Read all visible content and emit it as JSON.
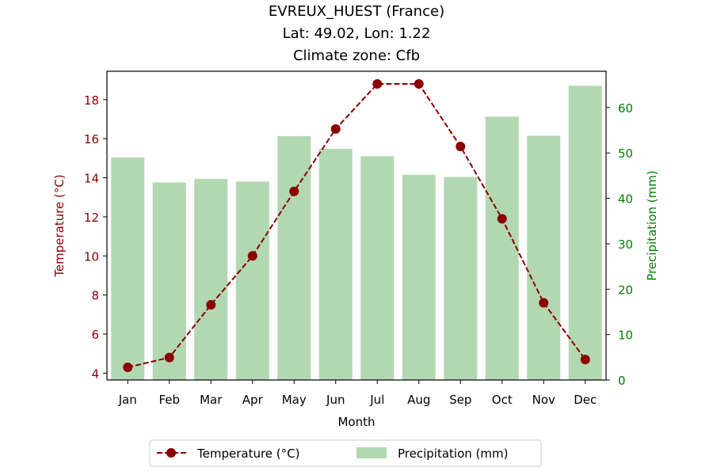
{
  "chart_data": {
    "type": "bar+line",
    "title_lines": [
      "EVREUX_HUEST (France)",
      "Lat: 49.02, Lon: 1.22",
      "Climate zone: Cfb"
    ],
    "xlabel": "Month",
    "ylabel_left": "Temperature (°C)",
    "ylabel_right": "Precipitation (mm)",
    "categories": [
      "Jan",
      "Feb",
      "Mar",
      "Apr",
      "May",
      "Jun",
      "Jul",
      "Aug",
      "Sep",
      "Oct",
      "Nov",
      "Dec"
    ],
    "left_ticks": [
      4,
      6,
      8,
      10,
      12,
      14,
      16,
      18
    ],
    "right_ticks": [
      0,
      10,
      20,
      30,
      40,
      50,
      60
    ],
    "ylim_left": [
      3.65,
      19.45
    ],
    "ylim_right": [
      0,
      68
    ],
    "grid": false,
    "legend_position": "bottom-center",
    "series": [
      {
        "name": "Temperature (°C)",
        "kind": "line",
        "axis": "left",
        "color": "#8b0000",
        "line_style": "dashed",
        "marker": "circle",
        "values": [
          4.3,
          4.8,
          7.5,
          10.0,
          13.3,
          16.5,
          18.8,
          18.8,
          15.6,
          11.9,
          7.6,
          4.7
        ]
      },
      {
        "name": "Precipitation (mm)",
        "kind": "bar",
        "axis": "right",
        "color": "#b2d8b2",
        "values": [
          49.0,
          43.5,
          44.3,
          43.7,
          53.7,
          50.9,
          49.3,
          45.2,
          44.7,
          58.0,
          53.8,
          64.8
        ]
      }
    ]
  },
  "colors": {
    "left_axis": "#8b0000",
    "right_axis": "#008000",
    "text": "#000000"
  }
}
